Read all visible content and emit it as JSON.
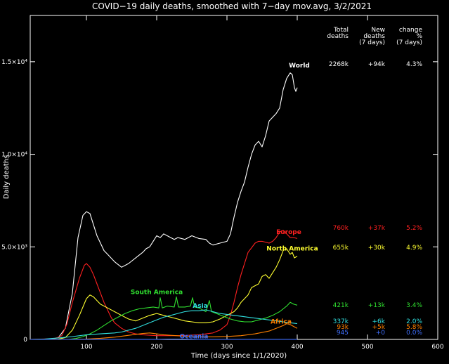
{
  "chart_data": {
    "type": "line",
    "title": "COVID−19 daily deaths, smoothed with 7−day mov.avg, 3/2/2021",
    "xlabel": "Time (days since 1/1/2020)",
    "ylabel": "Daily deaths",
    "xlim": [
      20,
      600
    ],
    "ylim": [
      0,
      17500
    ],
    "x_ticks": [
      100,
      200,
      300,
      400,
      500,
      600
    ],
    "y_ticks": [
      {
        "value": 0,
        "label": "0"
      },
      {
        "value": 5000,
        "label": "5.0×10³"
      },
      {
        "value": 10000,
        "label": "1.0×10⁴"
      },
      {
        "value": 15000,
        "label": "1.5×10⁴"
      }
    ],
    "table_headers": [
      {
        "l1": "Total",
        "l2": "deaths",
        "l3": ""
      },
      {
        "l1": "New",
        "l2": "deaths",
        "l3": "(7 days)"
      },
      {
        "l1": "change",
        "l2": "%",
        "l3": "(7 days)"
      }
    ],
    "series": [
      {
        "name": "World",
        "color": "#ffffff",
        "total": "2268k",
        "new7": "+94k",
        "change7": "4.3%",
        "label_at": [
          403,
          14700
        ],
        "points": [
          [
            20,
            0
          ],
          [
            50,
            20
          ],
          [
            60,
            100
          ],
          [
            70,
            600
          ],
          [
            80,
            2500
          ],
          [
            88,
            5500
          ],
          [
            95,
            6700
          ],
          [
            100,
            6900
          ],
          [
            105,
            6800
          ],
          [
            110,
            6200
          ],
          [
            115,
            5600
          ],
          [
            120,
            5200
          ],
          [
            125,
            4800
          ],
          [
            130,
            4600
          ],
          [
            140,
            4200
          ],
          [
            150,
            3900
          ],
          [
            160,
            4100
          ],
          [
            170,
            4400
          ],
          [
            180,
            4700
          ],
          [
            185,
            4900
          ],
          [
            190,
            5000
          ],
          [
            195,
            5300
          ],
          [
            200,
            5600
          ],
          [
            205,
            5500
          ],
          [
            210,
            5700
          ],
          [
            215,
            5600
          ],
          [
            220,
            5500
          ],
          [
            225,
            5400
          ],
          [
            230,
            5500
          ],
          [
            240,
            5400
          ],
          [
            250,
            5600
          ],
          [
            260,
            5450
          ],
          [
            270,
            5400
          ],
          [
            275,
            5200
          ],
          [
            280,
            5100
          ],
          [
            290,
            5200
          ],
          [
            300,
            5300
          ],
          [
            305,
            5700
          ],
          [
            310,
            6600
          ],
          [
            315,
            7400
          ],
          [
            320,
            8000
          ],
          [
            325,
            8500
          ],
          [
            330,
            9300
          ],
          [
            335,
            10000
          ],
          [
            340,
            10500
          ],
          [
            345,
            10700
          ],
          [
            350,
            10400
          ],
          [
            355,
            11000
          ],
          [
            360,
            11800
          ],
          [
            365,
            12000
          ],
          [
            370,
            12200
          ],
          [
            375,
            12500
          ],
          [
            380,
            13500
          ],
          [
            385,
            14100
          ],
          [
            390,
            14400
          ],
          [
            393,
            14300
          ],
          [
            396,
            13600
          ],
          [
            398,
            13400
          ],
          [
            400,
            13600
          ]
        ]
      },
      {
        "name": "Europe",
        "color": "#ff2020",
        "total": "760k",
        "new7": "+37k",
        "change7": "5.2%",
        "label_at": [
          388,
          5700
        ],
        "points": [
          [
            20,
            0
          ],
          [
            55,
            40
          ],
          [
            65,
            200
          ],
          [
            72,
            800
          ],
          [
            80,
            2000
          ],
          [
            90,
            3300
          ],
          [
            97,
            4000
          ],
          [
            100,
            4100
          ],
          [
            105,
            3900
          ],
          [
            110,
            3500
          ],
          [
            115,
            3000
          ],
          [
            120,
            2500
          ],
          [
            125,
            2000
          ],
          [
            130,
            1600
          ],
          [
            135,
            1200
          ],
          [
            140,
            900
          ],
          [
            150,
            600
          ],
          [
            160,
            400
          ],
          [
            170,
            300
          ],
          [
            180,
            250
          ],
          [
            200,
            200
          ],
          [
            230,
            200
          ],
          [
            260,
            250
          ],
          [
            280,
            350
          ],
          [
            290,
            500
          ],
          [
            300,
            800
          ],
          [
            305,
            1300
          ],
          [
            310,
            2000
          ],
          [
            315,
            2800
          ],
          [
            320,
            3500
          ],
          [
            325,
            4100
          ],
          [
            330,
            4700
          ],
          [
            340,
            5200
          ],
          [
            345,
            5300
          ],
          [
            350,
            5300
          ],
          [
            360,
            5200
          ],
          [
            365,
            5300
          ],
          [
            370,
            5500
          ],
          [
            375,
            5800
          ],
          [
            380,
            5900
          ],
          [
            385,
            5700
          ],
          [
            390,
            5500
          ],
          [
            395,
            5500
          ],
          [
            400,
            5450
          ]
        ]
      },
      {
        "name": "North America",
        "color": "#ffff30",
        "total": "655k",
        "new7": "+30k",
        "change7": "4.9%",
        "label_at": [
          393,
          4800
        ],
        "points": [
          [
            20,
            0
          ],
          [
            60,
            10
          ],
          [
            70,
            100
          ],
          [
            80,
            500
          ],
          [
            90,
            1300
          ],
          [
            100,
            2200
          ],
          [
            105,
            2400
          ],
          [
            110,
            2300
          ],
          [
            115,
            2100
          ],
          [
            120,
            1900
          ],
          [
            130,
            1700
          ],
          [
            140,
            1500
          ],
          [
            150,
            1300
          ],
          [
            160,
            1100
          ],
          [
            170,
            1000
          ],
          [
            180,
            1150
          ],
          [
            190,
            1300
          ],
          [
            200,
            1400
          ],
          [
            210,
            1300
          ],
          [
            220,
            1200
          ],
          [
            230,
            1100
          ],
          [
            240,
            1000
          ],
          [
            250,
            950
          ],
          [
            260,
            900
          ],
          [
            270,
            900
          ],
          [
            280,
            950
          ],
          [
            290,
            1100
          ],
          [
            300,
            1300
          ],
          [
            310,
            1500
          ],
          [
            315,
            1700
          ],
          [
            320,
            2000
          ],
          [
            325,
            2200
          ],
          [
            330,
            2400
          ],
          [
            335,
            2800
          ],
          [
            340,
            2900
          ],
          [
            345,
            3000
          ],
          [
            350,
            3400
          ],
          [
            355,
            3500
          ],
          [
            360,
            3300
          ],
          [
            365,
            3600
          ],
          [
            370,
            3900
          ],
          [
            375,
            4300
          ],
          [
            380,
            4800
          ],
          [
            385,
            4900
          ],
          [
            390,
            4600
          ],
          [
            393,
            4700
          ],
          [
            396,
            4400
          ],
          [
            400,
            4500
          ]
        ]
      },
      {
        "name": "South America",
        "color": "#30e030",
        "total": "421k",
        "new7": "+13k",
        "change7": "3.4%",
        "label_at": [
          200,
          2450
        ],
        "points": [
          [
            20,
            0
          ],
          [
            75,
            5
          ],
          [
            85,
            50
          ],
          [
            95,
            150
          ],
          [
            105,
            300
          ],
          [
            115,
            500
          ],
          [
            125,
            750
          ],
          [
            135,
            1000
          ],
          [
            145,
            1200
          ],
          [
            155,
            1400
          ],
          [
            165,
            1550
          ],
          [
            175,
            1650
          ],
          [
            185,
            1700
          ],
          [
            195,
            1750
          ],
          [
            203,
            1700
          ],
          [
            205,
            2250
          ],
          [
            208,
            1700
          ],
          [
            215,
            1800
          ],
          [
            225,
            1750
          ],
          [
            228,
            2300
          ],
          [
            231,
            1750
          ],
          [
            240,
            1750
          ],
          [
            248,
            1800
          ],
          [
            251,
            2250
          ],
          [
            254,
            1750
          ],
          [
            260,
            1700
          ],
          [
            270,
            1500
          ],
          [
            275,
            2100
          ],
          [
            278,
            1500
          ],
          [
            285,
            1400
          ],
          [
            295,
            1250
          ],
          [
            305,
            1100
          ],
          [
            315,
            1000
          ],
          [
            325,
            950
          ],
          [
            335,
            950
          ],
          [
            345,
            1050
          ],
          [
            355,
            1150
          ],
          [
            365,
            1300
          ],
          [
            375,
            1500
          ],
          [
            385,
            1800
          ],
          [
            390,
            2000
          ],
          [
            395,
            1900
          ],
          [
            400,
            1850
          ]
        ]
      },
      {
        "name": "Asia",
        "color": "#30e0e0",
        "total": "337k",
        "new7": "+6k",
        "change7": "2.0%",
        "label_at": [
          262,
          1700
        ],
        "points": [
          [
            20,
            0
          ],
          [
            40,
            20
          ],
          [
            50,
            50
          ],
          [
            60,
            80
          ],
          [
            80,
            150
          ],
          [
            100,
            250
          ],
          [
            120,
            300
          ],
          [
            140,
            350
          ],
          [
            150,
            400
          ],
          [
            160,
            500
          ],
          [
            170,
            600
          ],
          [
            180,
            750
          ],
          [
            190,
            900
          ],
          [
            200,
            1050
          ],
          [
            210,
            1200
          ],
          [
            220,
            1300
          ],
          [
            230,
            1400
          ],
          [
            240,
            1500
          ],
          [
            250,
            1550
          ],
          [
            260,
            1550
          ],
          [
            270,
            1600
          ],
          [
            280,
            1500
          ],
          [
            290,
            1400
          ],
          [
            300,
            1350
          ],
          [
            310,
            1300
          ],
          [
            320,
            1250
          ],
          [
            330,
            1200
          ],
          [
            340,
            1150
          ],
          [
            350,
            1100
          ],
          [
            360,
            1050
          ],
          [
            370,
            1000
          ],
          [
            380,
            950
          ],
          [
            390,
            900
          ],
          [
            400,
            850
          ]
        ]
      },
      {
        "name": "Africa",
        "color": "#ff8000",
        "total": "93k",
        "new7": "+5k",
        "change7": "5.8%",
        "label_at": [
          377,
          850
        ],
        "points": [
          [
            20,
            0
          ],
          [
            80,
            5
          ],
          [
            100,
            20
          ],
          [
            120,
            60
          ],
          [
            140,
            120
          ],
          [
            160,
            220
          ],
          [
            180,
            320
          ],
          [
            190,
            350
          ],
          [
            200,
            300
          ],
          [
            210,
            250
          ],
          [
            220,
            220
          ],
          [
            240,
            170
          ],
          [
            260,
            140
          ],
          [
            280,
            140
          ],
          [
            300,
            160
          ],
          [
            320,
            200
          ],
          [
            340,
            300
          ],
          [
            360,
            450
          ],
          [
            370,
            600
          ],
          [
            380,
            750
          ],
          [
            385,
            850
          ],
          [
            390,
            800
          ],
          [
            395,
            700
          ],
          [
            400,
            600
          ]
        ]
      },
      {
        "name": "Oceania",
        "color": "#4070ff",
        "total": "945",
        "new7": "+0",
        "change7": "0.0%",
        "label_at": [
          253,
          50
        ],
        "points": [
          [
            20,
            0
          ],
          [
            60,
            0
          ],
          [
            90,
            5
          ],
          [
            120,
            2
          ],
          [
            200,
            5
          ],
          [
            220,
            20
          ],
          [
            240,
            15
          ],
          [
            260,
            5
          ],
          [
            300,
            2
          ],
          [
            400,
            2
          ]
        ]
      }
    ]
  }
}
